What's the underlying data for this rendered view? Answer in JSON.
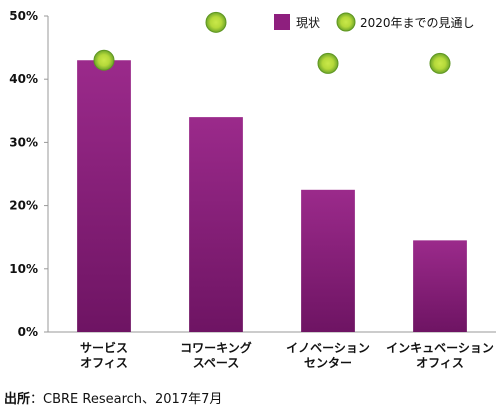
{
  "chart_data": {
    "type": "bar",
    "categories": [
      [
        "サービス",
        "オフィス"
      ],
      [
        "コワーキング",
        "スペース"
      ],
      [
        "イノベーション",
        "センター"
      ],
      [
        "インキュベーション",
        "オフィス"
      ]
    ],
    "series": [
      {
        "name": "現状",
        "type": "bar",
        "color": "#8e1f7e",
        "values": [
          43,
          34,
          22.5,
          14.5
        ]
      },
      {
        "name": "2020年までの見通し",
        "type": "marker",
        "color": "#8cc63f",
        "values": [
          43,
          49,
          42.5,
          42.5
        ]
      }
    ],
    "yticks": [
      "0%",
      "10%",
      "20%",
      "30%",
      "40%",
      "50%"
    ],
    "ylim": [
      0,
      50
    ],
    "grid": false,
    "legend": "top-right"
  },
  "source": {
    "label": "出所",
    "text": "：CBRE Research、2017年7月"
  }
}
